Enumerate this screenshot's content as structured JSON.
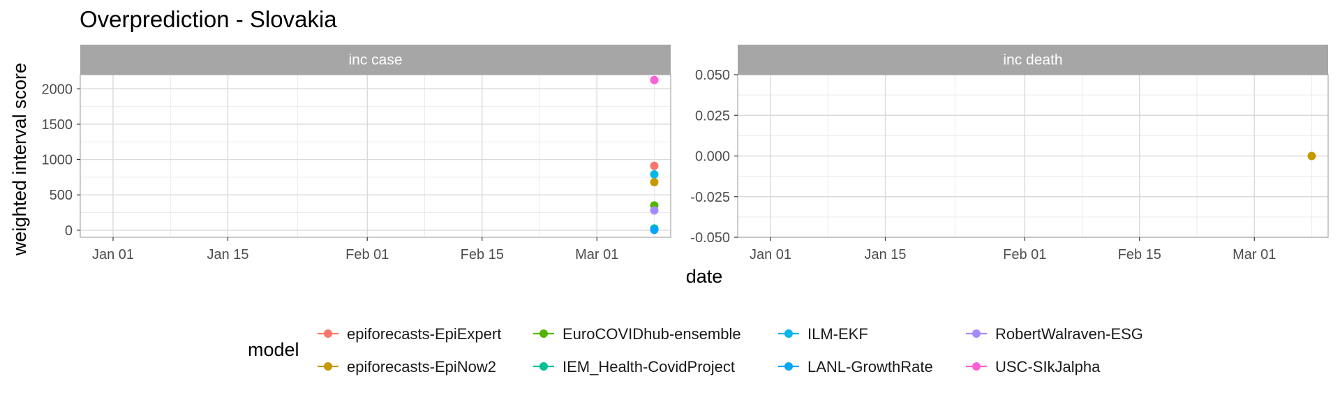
{
  "chart_data": {
    "type": "scatter",
    "title": "Overprediction - Slovakia",
    "xlabel": "date",
    "ylabel": "weighted interval score",
    "x_ticks": [
      "Jan 01",
      "Jan 15",
      "Feb 01",
      "Feb 15",
      "Mar 01"
    ],
    "legend": {
      "title": "model",
      "position": "bottom"
    },
    "series_colors": {
      "epiforecasts-EpiExpert": "#F8766D",
      "epiforecasts-EpiNow2": "#C49A00",
      "EuroCOVIDhub-ensemble": "#53B400",
      "IEM_Health-CovidProject": "#00C094",
      "ILM-EKF": "#00B6EB",
      "LANL-GrowthRate": "#06A4FF",
      "RobertWalraven-ESG": "#A58AFF",
      "USC-SIkJalpha": "#FB61D7"
    },
    "legend_order": [
      "epiforecasts-EpiExpert",
      "epiforecasts-EpiNow2",
      "EuroCOVIDhub-ensemble",
      "IEM_Health-CovidProject",
      "ILM-EKF",
      "LANL-GrowthRate",
      "RobertWalraven-ESG",
      "USC-SIkJalpha"
    ],
    "panels": [
      {
        "strip": "inc case",
        "y_ticks": [
          "0",
          "500",
          "1000",
          "1500",
          "2000"
        ],
        "ylim": [
          -100,
          2200
        ],
        "points": [
          {
            "model": "USC-SIkJalpha",
            "date": "2021-03-08",
            "value": 2125
          },
          {
            "model": "epiforecasts-EpiExpert",
            "date": "2021-03-08",
            "value": 910
          },
          {
            "model": "ILM-EKF",
            "date": "2021-03-08",
            "value": 790
          },
          {
            "model": "epiforecasts-EpiNow2",
            "date": "2021-03-08",
            "value": 680
          },
          {
            "model": "EuroCOVIDhub-ensemble",
            "date": "2021-03-08",
            "value": 350
          },
          {
            "model": "RobertWalraven-ESG",
            "date": "2021-03-08",
            "value": 280
          },
          {
            "model": "IEM_Health-CovidProject",
            "date": "2021-03-08",
            "value": 25
          },
          {
            "model": "LANL-GrowthRate",
            "date": "2021-03-08",
            "value": 5
          }
        ]
      },
      {
        "strip": "inc death",
        "y_ticks": [
          "0.050",
          "0.025",
          "0.000",
          "-0.025",
          "-0.050"
        ],
        "ylim": [
          -0.05,
          0.05
        ],
        "points": [
          {
            "model": "epiforecasts-EpiNow2",
            "date": "2021-03-08",
            "value": 0.0
          }
        ]
      }
    ]
  }
}
